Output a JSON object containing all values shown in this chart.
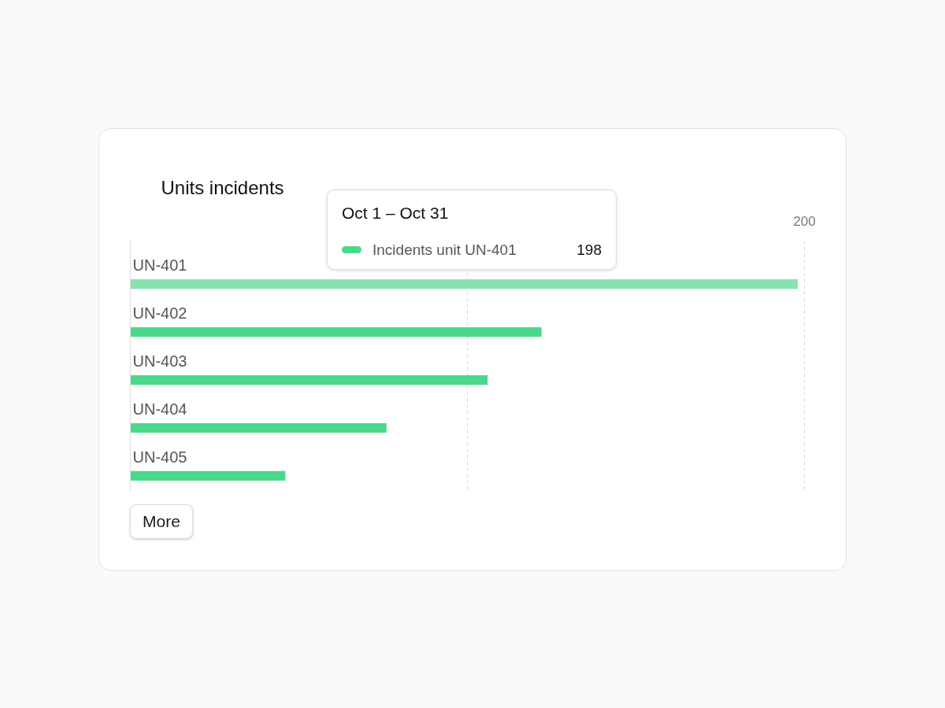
{
  "chart_data": {
    "type": "bar",
    "orientation": "horizontal",
    "title": "Units incidents",
    "categories": [
      "UN-401",
      "UN-402",
      "UN-403",
      "UN-404",
      "UN-405"
    ],
    "values": [
      198,
      122,
      106,
      76,
      46
    ],
    "colors": [
      "#86e3b0",
      "#4ad98a",
      "#4ad98a",
      "#4ad98a",
      "#4ad98a"
    ],
    "xlim": [
      0,
      200
    ],
    "xticks": [
      {
        "value": 100,
        "label": null
      },
      200
    ],
    "grid": "x",
    "tick_labels": "x",
    "annotations": [
      "Oct 1 – Oct 31",
      "Incidents unit UN-401",
      "198",
      "More"
    ]
  }
}
